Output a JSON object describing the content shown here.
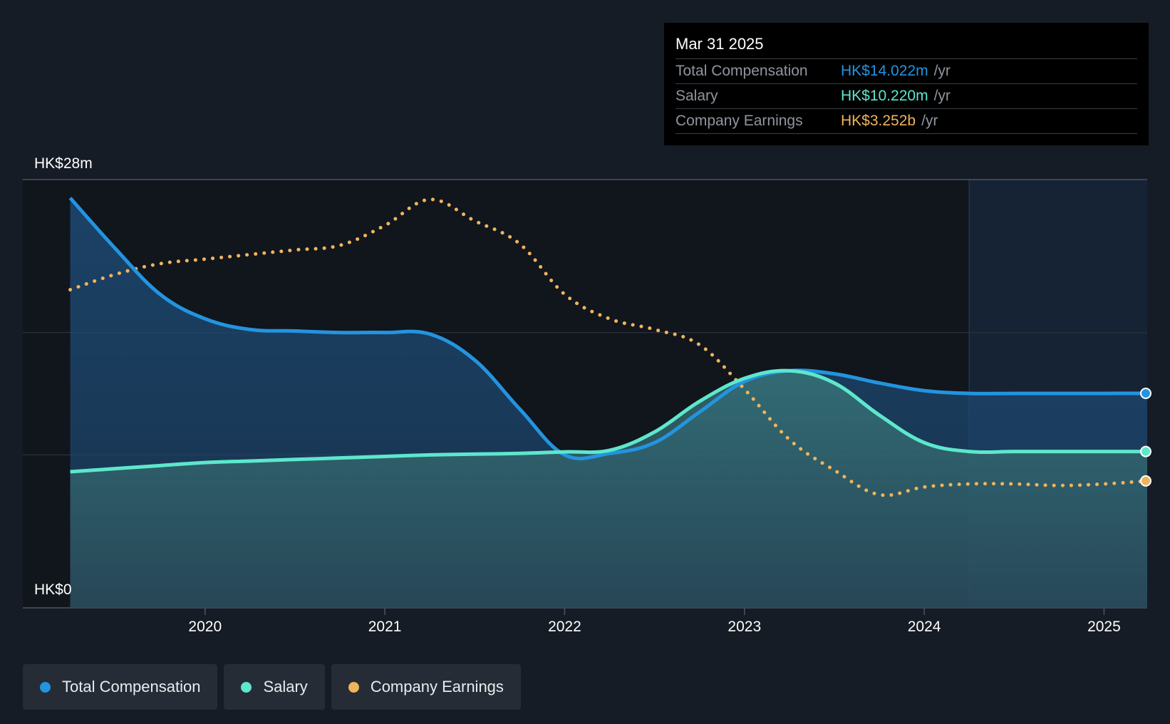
{
  "chart_data": {
    "type": "line",
    "y_axis": {
      "unit": "HK$m",
      "ylim": [
        0,
        28
      ],
      "top_label": "HK$28m",
      "bottom_label": "HK$0"
    },
    "x_axis": {
      "tick_labels": [
        "2020",
        "2021",
        "2022",
        "2023",
        "2024",
        "2025"
      ],
      "tick_values": [
        2020,
        2021,
        2022,
        2023,
        2024,
        2025
      ],
      "xlim": [
        2019.24,
        2025.24
      ]
    },
    "forecast_start": 2024.25,
    "series": [
      {
        "name": "Total Compensation",
        "color": "#2394df",
        "style": "solid-area",
        "points": [
          [
            2019.25,
            26.8
          ],
          [
            2019.5,
            23.5
          ],
          [
            2019.75,
            20.5
          ],
          [
            2020.0,
            18.9
          ],
          [
            2020.25,
            18.2
          ],
          [
            2020.5,
            18.1
          ],
          [
            2020.75,
            18.0
          ],
          [
            2021.0,
            18.0
          ],
          [
            2021.25,
            17.9
          ],
          [
            2021.5,
            16.2
          ],
          [
            2021.75,
            13.0
          ],
          [
            2022.0,
            10.0
          ],
          [
            2022.25,
            10.1
          ],
          [
            2022.5,
            10.8
          ],
          [
            2022.75,
            12.8
          ],
          [
            2023.0,
            14.8
          ],
          [
            2023.25,
            15.5
          ],
          [
            2023.5,
            15.3
          ],
          [
            2023.75,
            14.7
          ],
          [
            2024.0,
            14.2
          ],
          [
            2024.25,
            14.02
          ],
          [
            2024.5,
            14.02
          ],
          [
            2024.75,
            14.02
          ],
          [
            2025.0,
            14.02
          ],
          [
            2025.24,
            14.022
          ]
        ]
      },
      {
        "name": "Salary",
        "color": "#5de7cd",
        "style": "solid-area",
        "points": [
          [
            2019.25,
            8.9
          ],
          [
            2019.5,
            9.1
          ],
          [
            2019.75,
            9.3
          ],
          [
            2020.0,
            9.5
          ],
          [
            2020.25,
            9.6
          ],
          [
            2020.5,
            9.7
          ],
          [
            2020.75,
            9.8
          ],
          [
            2021.0,
            9.9
          ],
          [
            2021.25,
            10.0
          ],
          [
            2021.5,
            10.05
          ],
          [
            2021.75,
            10.1
          ],
          [
            2022.0,
            10.2
          ],
          [
            2022.25,
            10.3
          ],
          [
            2022.5,
            11.5
          ],
          [
            2022.75,
            13.5
          ],
          [
            2023.0,
            15.0
          ],
          [
            2023.25,
            15.5
          ],
          [
            2023.5,
            14.7
          ],
          [
            2023.75,
            12.6
          ],
          [
            2024.0,
            10.8
          ],
          [
            2024.25,
            10.22
          ],
          [
            2024.5,
            10.22
          ],
          [
            2024.75,
            10.22
          ],
          [
            2025.0,
            10.22
          ],
          [
            2025.24,
            10.22
          ]
        ]
      },
      {
        "name": "Company Earnings",
        "color": "#f0b45c",
        "style": "dotted",
        "points": [
          [
            2019.25,
            20.8
          ],
          [
            2019.5,
            21.8
          ],
          [
            2019.75,
            22.5
          ],
          [
            2020.0,
            22.8
          ],
          [
            2020.25,
            23.1
          ],
          [
            2020.5,
            23.4
          ],
          [
            2020.75,
            23.7
          ],
          [
            2021.0,
            25.0
          ],
          [
            2021.25,
            26.7
          ],
          [
            2021.5,
            25.3
          ],
          [
            2021.75,
            23.8
          ],
          [
            2022.0,
            20.5
          ],
          [
            2022.25,
            18.9
          ],
          [
            2022.5,
            18.2
          ],
          [
            2022.75,
            17.2
          ],
          [
            2023.0,
            14.3
          ],
          [
            2023.25,
            11.0
          ],
          [
            2023.5,
            9.0
          ],
          [
            2023.75,
            7.4
          ],
          [
            2024.0,
            7.9
          ],
          [
            2024.25,
            8.1
          ],
          [
            2024.5,
            8.1
          ],
          [
            2024.75,
            8.0
          ],
          [
            2025.0,
            8.1
          ],
          [
            2025.24,
            8.3
          ]
        ]
      }
    ]
  },
  "tooltip": {
    "date": "Mar 31 2025",
    "rows": [
      {
        "label": "Total Compensation",
        "value": "HK$14.022m",
        "unit": "/yr",
        "color": "#2394df"
      },
      {
        "label": "Salary",
        "value": "HK$10.220m",
        "unit": "/yr",
        "color": "#5de7cd"
      },
      {
        "label": "Company Earnings",
        "value": "HK$3.252b",
        "unit": "/yr",
        "color": "#f0b45c"
      }
    ]
  },
  "legend": [
    {
      "label": "Total Compensation",
      "color": "#2394df"
    },
    {
      "label": "Salary",
      "color": "#5de7cd"
    },
    {
      "label": "Company Earnings",
      "color": "#f0b45c"
    }
  ]
}
